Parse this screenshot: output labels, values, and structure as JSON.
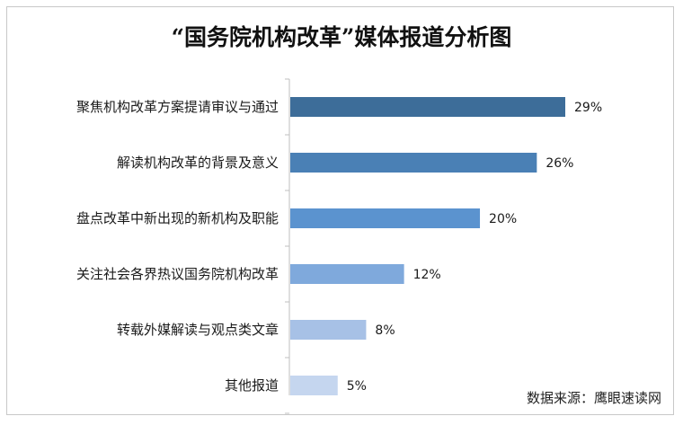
{
  "chart_data": {
    "type": "bar",
    "orientation": "horizontal",
    "title": "“国务院机构改革”媒体报道分析图",
    "categories": [
      "聚焦机构改革方案提请审议与通过",
      "解读机构改革的背景及意义",
      "盘点改革中新出现的新机构及职能",
      "关注社会各界热议国务院机构改革",
      "转载外媒解读与观点类文章",
      "其他报道"
    ],
    "values": [
      29,
      26,
      20,
      12,
      8,
      5
    ],
    "value_labels": [
      "29%",
      "26%",
      "20%",
      "12%",
      "8%",
      "5%"
    ],
    "unit": "%",
    "bar_colors": [
      "#3d6d99",
      "#4a80b5",
      "#5b93cf",
      "#7fa9dc",
      "#a7c1e6",
      "#c5d6ef"
    ],
    "xlim": [
      0,
      29
    ],
    "grid": false,
    "legend": "none",
    "source": "数据来源：鹰眼速读网"
  }
}
